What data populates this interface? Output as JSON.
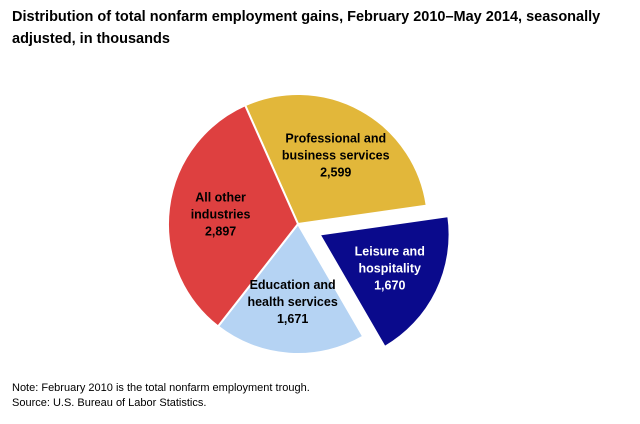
{
  "chart_data": {
    "type": "pie",
    "title": "Distribution of total nonfarm employment gains, February 2010–May 2014, seasonally adjusted, in thousands",
    "slices": [
      {
        "label_lines": [
          "Professional and",
          "business services"
        ],
        "value": 2599,
        "value_label": "2,599",
        "color": "#e2b73a",
        "text_color": "#000000",
        "exploded": false
      },
      {
        "label_lines": [
          "Leisure and",
          "hospitality"
        ],
        "value": 1670,
        "value_label": "1,670",
        "color": "#0a0a8c",
        "text_color": "#ffffff",
        "exploded": true
      },
      {
        "label_lines": [
          "Education and",
          "health services"
        ],
        "value": 1671,
        "value_label": "1,671",
        "color": "#b5d3f3",
        "text_color": "#000000",
        "exploded": false
      },
      {
        "label_lines": [
          "All other",
          "industries"
        ],
        "value": 2897,
        "value_label": "2,897",
        "color": "#de4040",
        "text_color": "#000000",
        "exploded": false
      }
    ],
    "legend": "none"
  },
  "notes": {
    "note": "Note: February 2010  is the total nonfarm employment trough.",
    "source": "Source: U.S. Bureau of Labor Statistics."
  }
}
